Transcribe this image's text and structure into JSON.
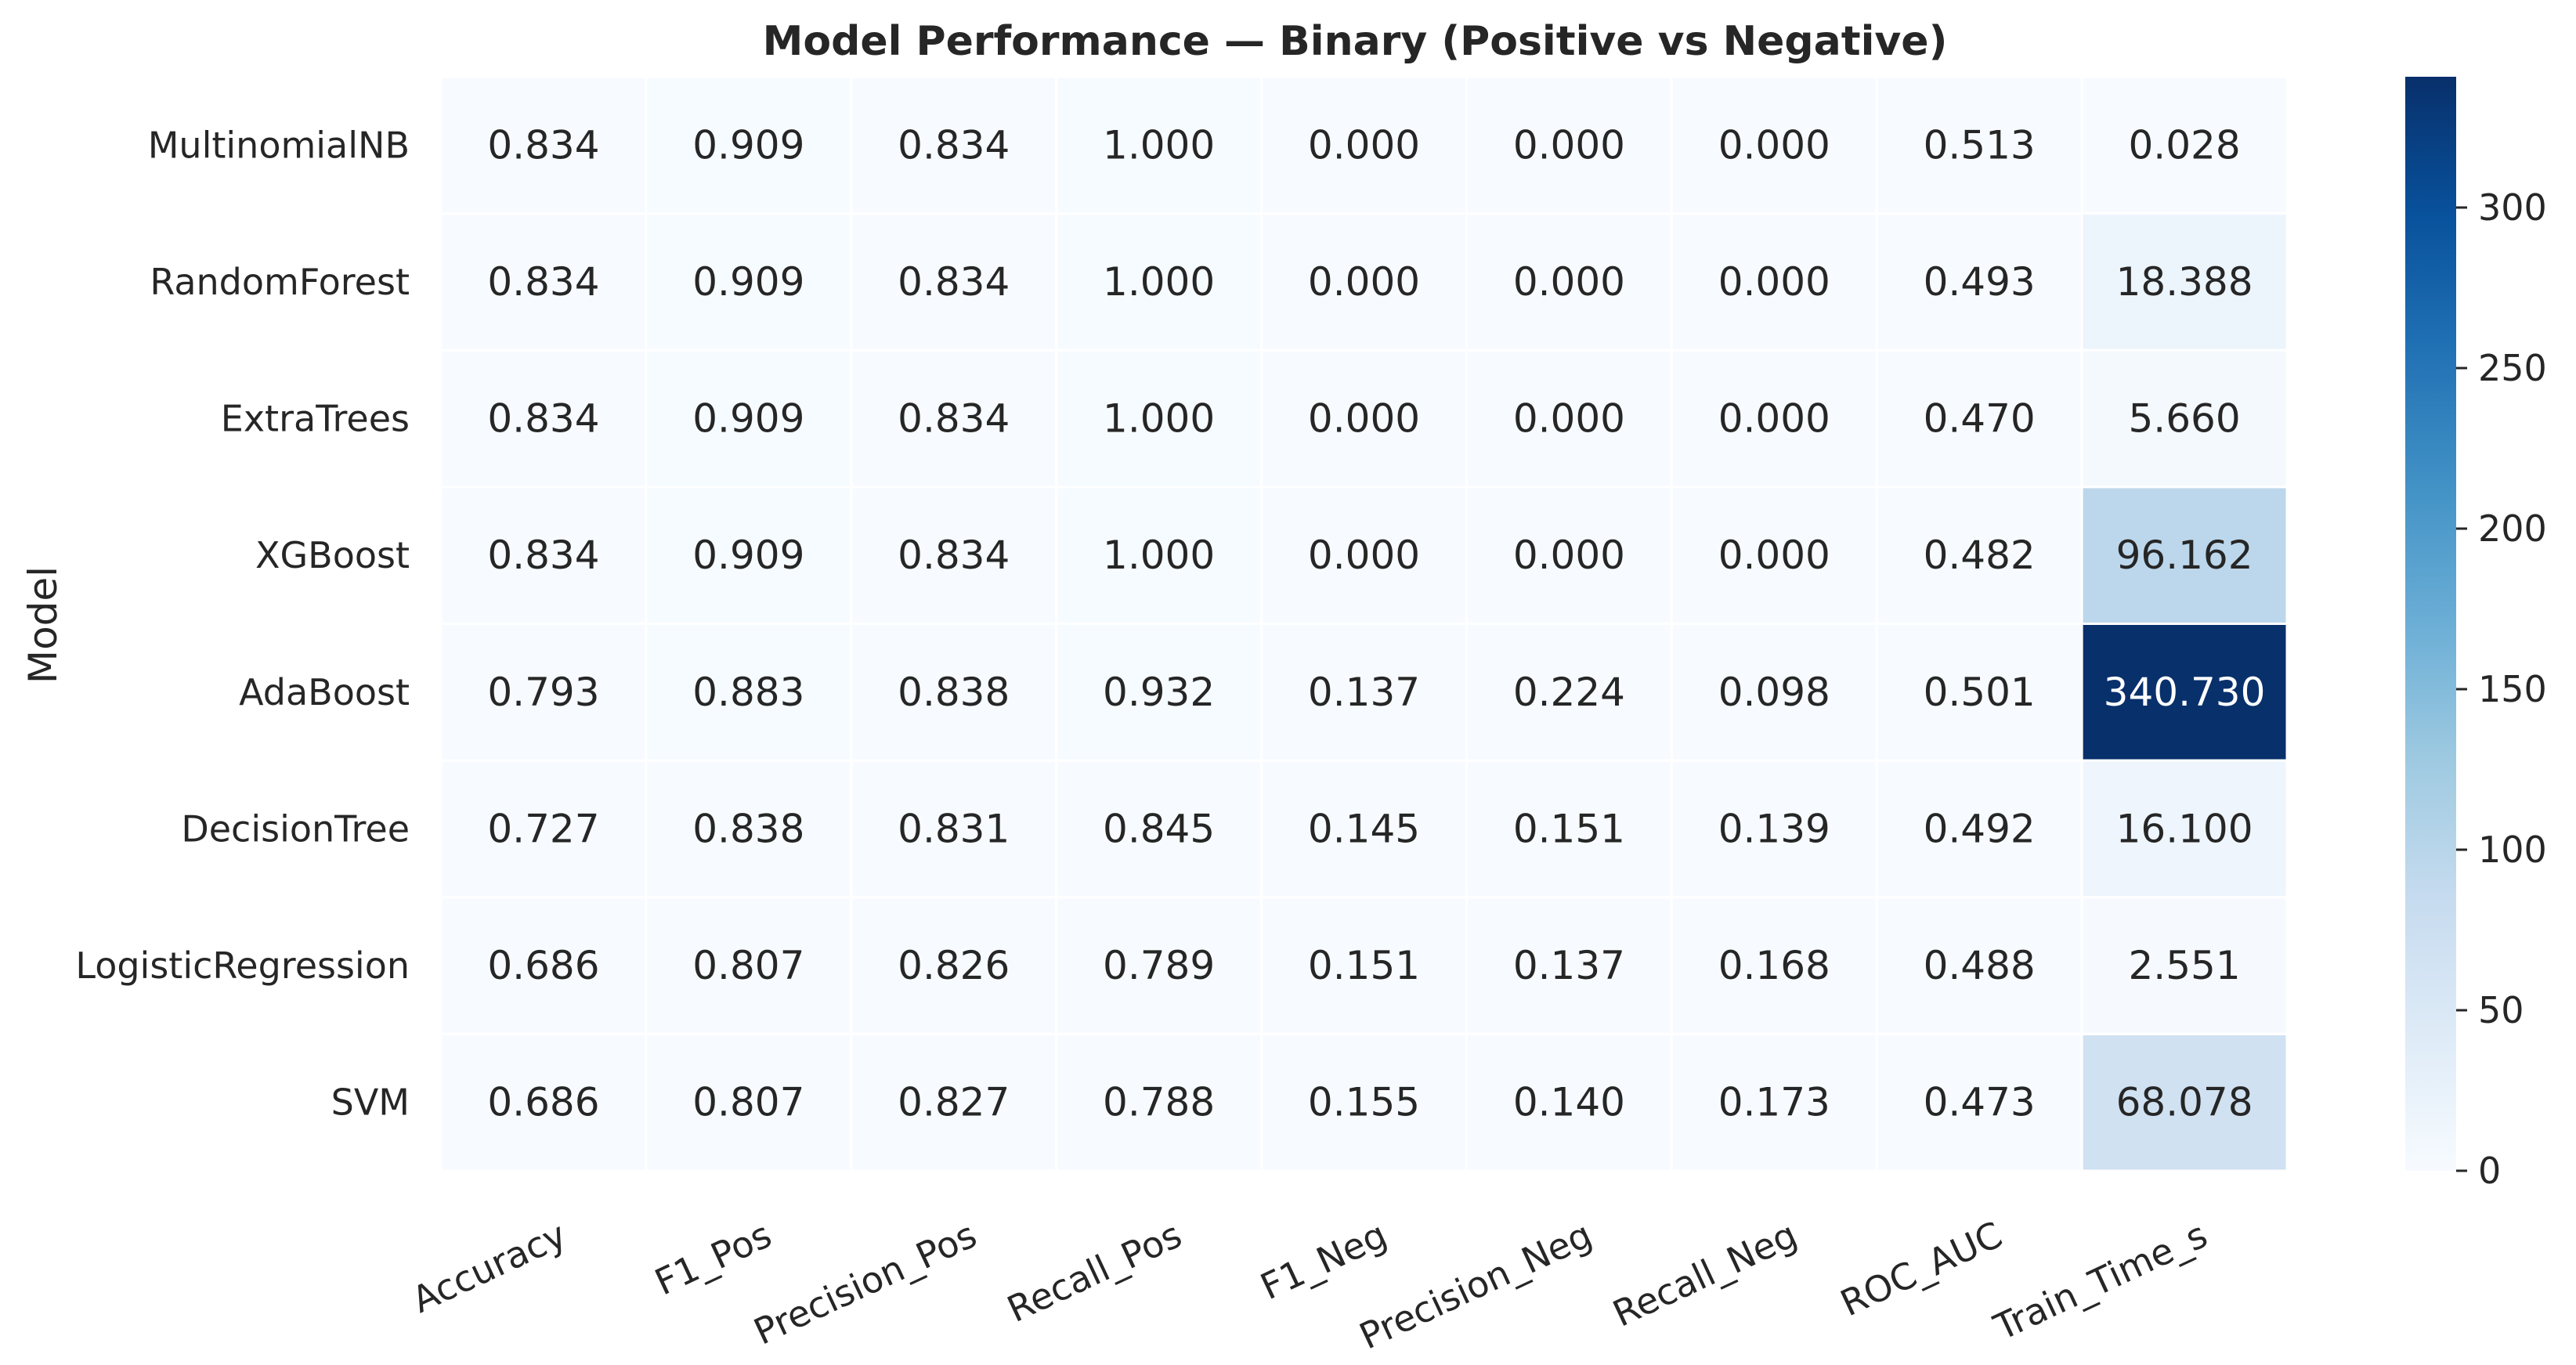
{
  "chart_data": {
    "type": "heatmap",
    "title": "Model Performance — Binary (Positive vs Negative)",
    "ylabel": "Model",
    "xlabel": "",
    "rows": [
      "MultinomialNB",
      "RandomForest",
      "ExtraTrees",
      "XGBoost",
      "AdaBoost",
      "DecisionTree",
      "LogisticRegression",
      "SVM"
    ],
    "columns": [
      "Accuracy",
      "F1_Pos",
      "Precision_Pos",
      "Recall_Pos",
      "F1_Neg",
      "Precision_Neg",
      "Recall_Neg",
      "ROC_AUC",
      "Train_Time_s"
    ],
    "values": [
      [
        0.834,
        0.909,
        0.834,
        1.0,
        0.0,
        0.0,
        0.0,
        0.513,
        0.028
      ],
      [
        0.834,
        0.909,
        0.834,
        1.0,
        0.0,
        0.0,
        0.0,
        0.493,
        18.388
      ],
      [
        0.834,
        0.909,
        0.834,
        1.0,
        0.0,
        0.0,
        0.0,
        0.47,
        5.66
      ],
      [
        0.834,
        0.909,
        0.834,
        1.0,
        0.0,
        0.0,
        0.0,
        0.482,
        96.162
      ],
      [
        0.793,
        0.883,
        0.838,
        0.932,
        0.137,
        0.224,
        0.098,
        0.501,
        340.73
      ],
      [
        0.727,
        0.838,
        0.831,
        0.845,
        0.145,
        0.151,
        0.139,
        0.492,
        16.1
      ],
      [
        0.686,
        0.807,
        0.826,
        0.789,
        0.151,
        0.137,
        0.168,
        0.488,
        2.551
      ],
      [
        0.686,
        0.807,
        0.827,
        0.788,
        0.155,
        0.14,
        0.173,
        0.473,
        68.078
      ]
    ],
    "value_format": "3 decimals",
    "colormap": "Blues",
    "colormap_stops": [
      "#f7fbff",
      "#deebf7",
      "#c6dbef",
      "#9ecae1",
      "#6baed6",
      "#4292c6",
      "#2171b5",
      "#08519c",
      "#08306b"
    ],
    "vmin": 0,
    "vmax": 340.73,
    "colorbar_ticks": [
      0,
      50,
      100,
      150,
      200,
      250,
      300
    ],
    "light_text_color": "#ffffff",
    "dark_text_color": "#262626",
    "grid_line_color": "#ffffff",
    "legend": "colorbar right"
  }
}
